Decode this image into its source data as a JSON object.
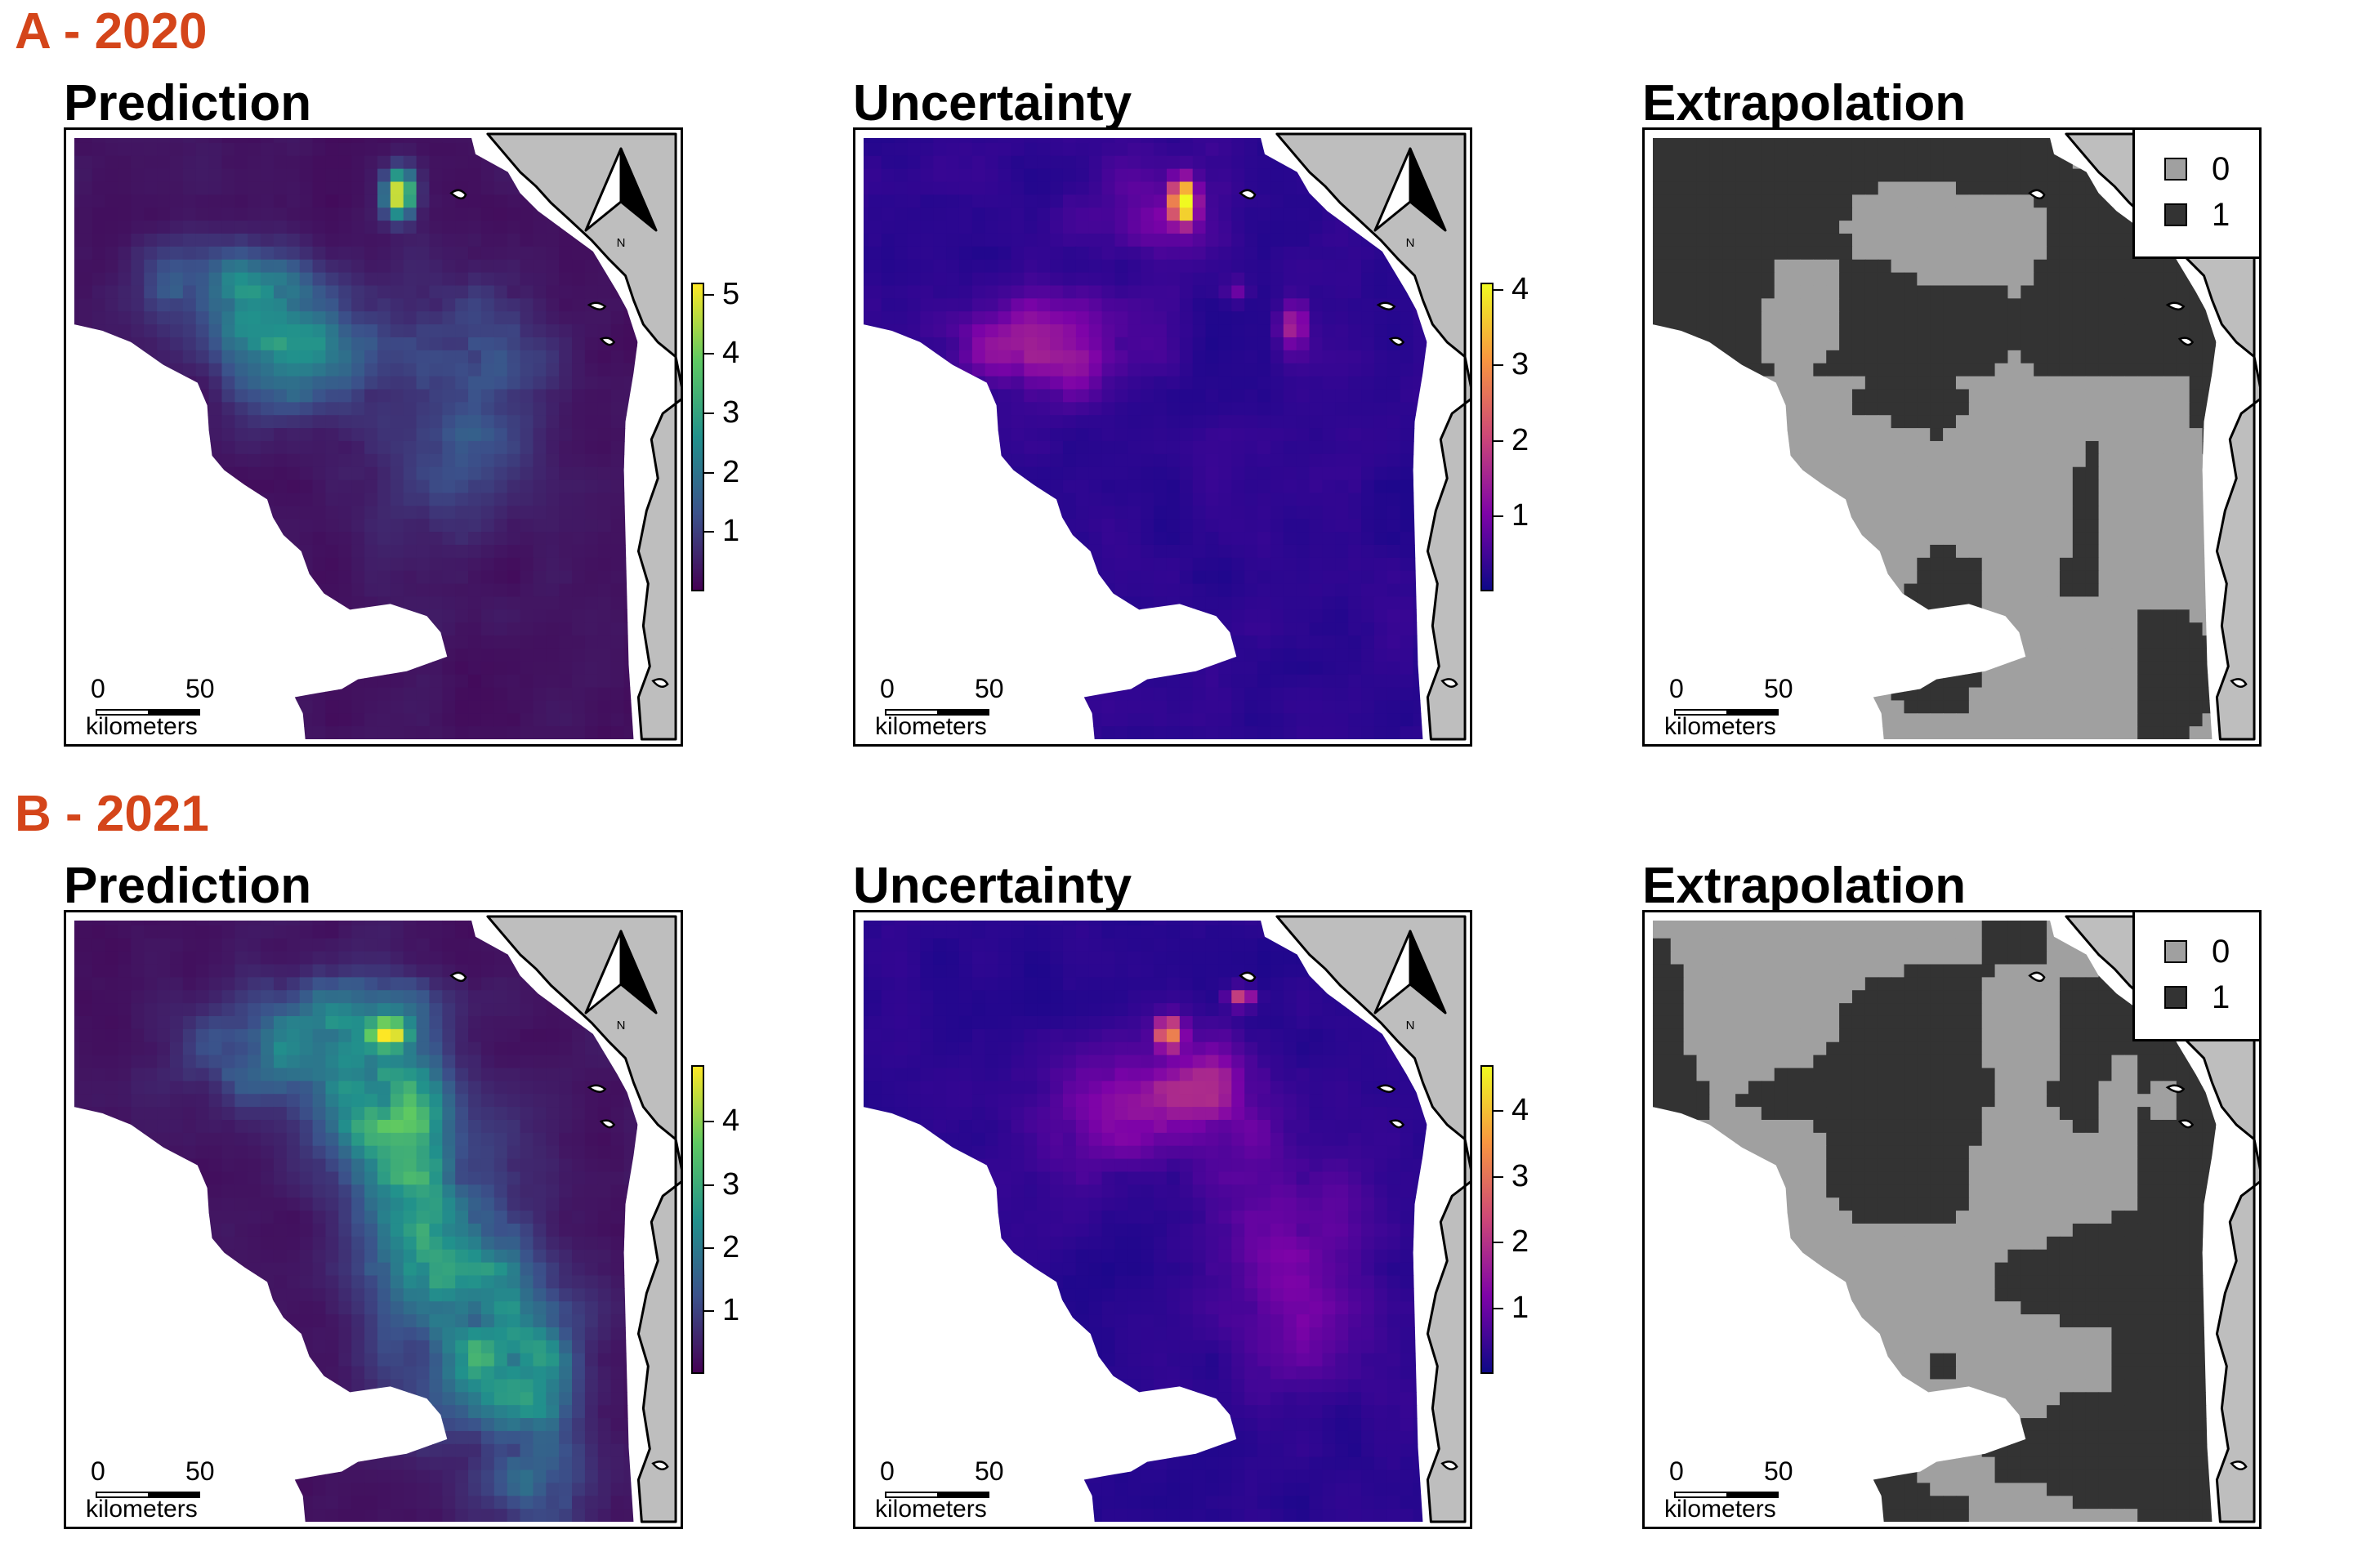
{
  "figure": {
    "rows": [
      {
        "label": "A - 2020",
        "panels": {
          "prediction": {
            "title": "Prediction",
            "ticks": [
              "5",
              "4",
              "3",
              "2",
              "1"
            ],
            "tick_values": [
              5,
              4,
              3,
              2,
              1
            ],
            "scale_max": 5.2
          },
          "uncertainty": {
            "title": "Uncertainty",
            "ticks": [
              "4",
              "3",
              "2",
              "1"
            ],
            "tick_values": [
              4,
              3,
              2,
              1
            ],
            "scale_max": 4.1
          },
          "extrapolation": {
            "title": "Extrapolation"
          }
        }
      },
      {
        "label": "B - 2021",
        "panels": {
          "prediction": {
            "title": "Prediction",
            "ticks": [
              "4",
              "3",
              "2",
              "1"
            ],
            "tick_values": [
              4,
              3,
              2,
              1
            ],
            "scale_max": 4.9
          },
          "uncertainty": {
            "title": "Uncertainty",
            "ticks": [
              "4",
              "3",
              "2",
              "1"
            ],
            "tick_values": [
              4,
              3,
              2,
              1
            ],
            "scale_max": 4.7
          },
          "extrapolation": {
            "title": "Extrapolation"
          }
        }
      }
    ],
    "scalebar": {
      "start": "0",
      "end": "50",
      "unit": "kilometers"
    },
    "north_arrow": {
      "label": "N",
      "icon": "north-arrow-icon"
    },
    "extrapolation_legend": [
      {
        "label": "0",
        "color": "#a0a0a0"
      },
      {
        "label": "1",
        "color": "#333333"
      }
    ],
    "colors": {
      "row_label": "#d4451a",
      "land": "#bebebe",
      "viridis": [
        "#440154",
        "#3b528b",
        "#21918c",
        "#5ec962",
        "#fde725"
      ],
      "plasma": [
        "#0d0887",
        "#7e03a8",
        "#cc4778",
        "#f89540",
        "#f0f921"
      ]
    }
  }
}
